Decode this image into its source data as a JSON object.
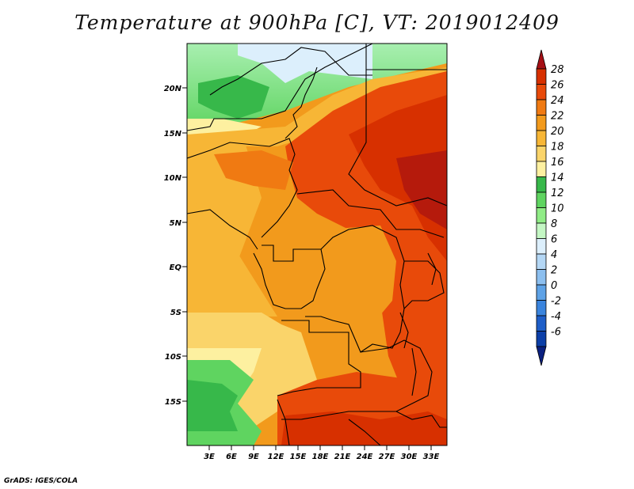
{
  "title": "Temperature at 900hPa [C], VT: 2019012409",
  "credit": "GrADS: IGES/COLA",
  "map": {
    "lon_range": [
      0,
      35
    ],
    "lat_range": [
      -20,
      25
    ],
    "lon_ticks": [
      "3E",
      "6E",
      "9E",
      "12E",
      "15E",
      "18E",
      "21E",
      "24E",
      "27E",
      "30E",
      "33E"
    ],
    "lat_ticks": [
      "20N",
      "15N",
      "10N",
      "5N",
      "EQ",
      "5S",
      "10S",
      "15S"
    ]
  },
  "colorbar": {
    "labels": [
      "28",
      "26",
      "24",
      "22",
      "20",
      "18",
      "16",
      "14",
      "12",
      "10",
      "8",
      "6",
      "4",
      "2",
      "0",
      "-2",
      "-4",
      "-6"
    ],
    "colors": [
      "#a50f15",
      "#d73000",
      "#e84a0a",
      "#f07a12",
      "#f29a1c",
      "#f7b636",
      "#fad46a",
      "#fdf0a0",
      "#37b84a",
      "#5fd460",
      "#90ec86",
      "#c4f7c4",
      "#dceffc",
      "#b4d7f5",
      "#8cbfef",
      "#5ea2e6",
      "#3a84dd",
      "#1e5ec8",
      "#0c3fa8",
      "#0a2080"
    ]
  }
}
